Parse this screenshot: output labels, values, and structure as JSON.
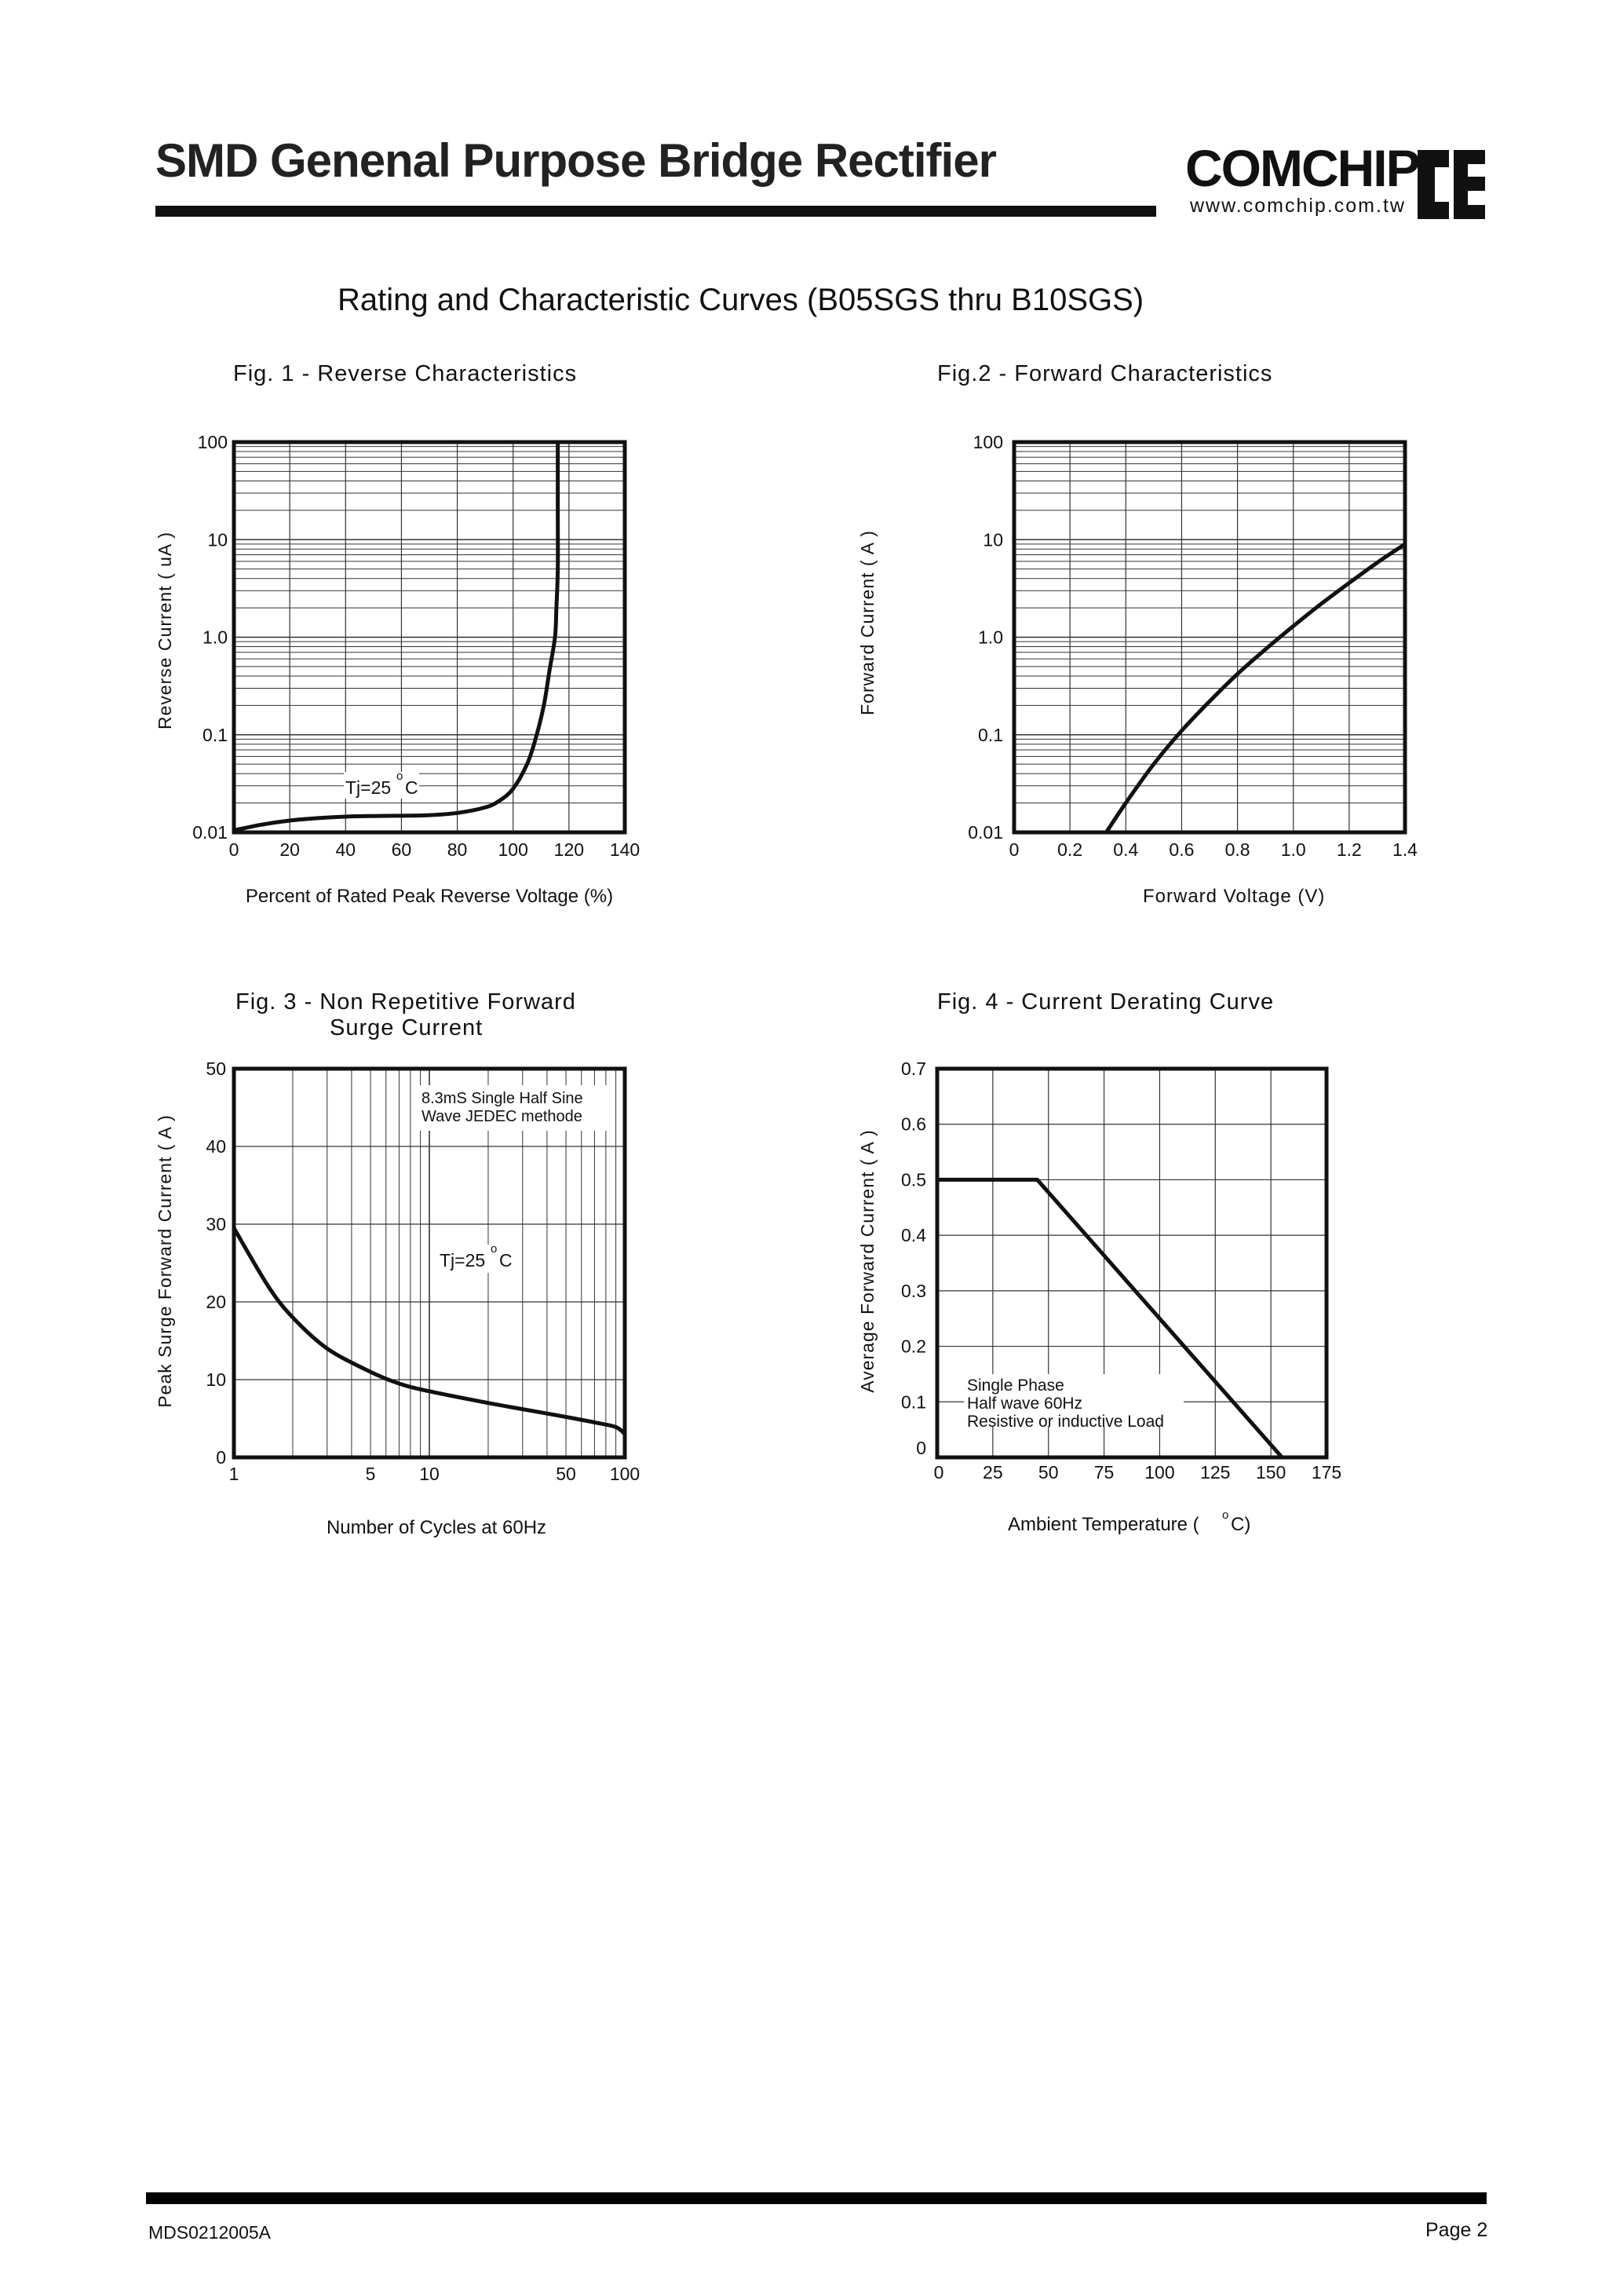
{
  "header": {
    "title": "SMD Genenal Purpose Bridge Rectifier",
    "brand": "COMCHIP",
    "brand_url": "www.comchip.com.tw",
    "logo_mark": "CE",
    "logo_sub": "R"
  },
  "subtitle": "Rating and Characteristic Curves (B05SGS thru B10SGS)",
  "footer": {
    "doc_code": "MDS0212005A",
    "page": "Page 2"
  },
  "chart_data": [
    {
      "id": "fig1",
      "type": "line",
      "title": "Fig. 1 -  Reverse Characteristics",
      "xlabel": "Percent of Rated Peak Reverse Voltage (%)",
      "ylabel": "Reverse Current ( uA )",
      "xscale": "linear",
      "yscale": "log",
      "xlim": [
        0,
        140
      ],
      "ylim": [
        0.01,
        100
      ],
      "xticks": [
        "0",
        "20",
        "40",
        "60",
        "80",
        "100",
        "120",
        "140"
      ],
      "yticks": [
        "0.01",
        "0.1",
        "1.0",
        "10",
        "100"
      ],
      "grid": true,
      "annotations": [
        {
          "text": "Tj=25",
          "sup": "o",
          "unit": "C"
        }
      ],
      "series": [
        {
          "x": [
            0,
            10,
            20,
            30,
            40,
            50,
            60,
            70,
            80,
            90,
            95,
            100,
            105,
            108,
            111,
            113,
            115,
            115.5,
            116,
            116,
            116
          ],
          "y": [
            0.0105,
            0.012,
            0.0132,
            0.014,
            0.0145,
            0.0147,
            0.0148,
            0.015,
            0.0158,
            0.018,
            0.021,
            0.028,
            0.05,
            0.09,
            0.2,
            0.45,
            1.0,
            2.0,
            5.0,
            20,
            100
          ]
        }
      ],
      "color": "#111111"
    },
    {
      "id": "fig2",
      "type": "line",
      "title": "Fig.2 -  Forward Characteristics",
      "xlabel": "Forward Voltage (V)",
      "ylabel": "Forward Current ( A )",
      "xscale": "linear",
      "yscale": "log",
      "xlim": [
        0,
        1.4
      ],
      "ylim": [
        0.01,
        100
      ],
      "xticks": [
        "0",
        "0.2",
        "0.4",
        "0.6",
        "0.8",
        "1.0",
        "1.2",
        "1.4"
      ],
      "yticks": [
        "0.01",
        "0.1",
        "1.0",
        "10",
        "100"
      ],
      "grid": true,
      "series": [
        {
          "x": [
            0.33,
            0.4,
            0.5,
            0.6,
            0.7,
            0.8,
            0.9,
            1.0,
            1.1,
            1.2,
            1.3,
            1.4
          ],
          "y": [
            0.01,
            0.02,
            0.05,
            0.11,
            0.22,
            0.42,
            0.75,
            1.3,
            2.2,
            3.6,
            5.8,
            9.0
          ]
        }
      ],
      "color": "#111111"
    },
    {
      "id": "fig3",
      "type": "line",
      "title_lines": [
        "Fig. 3 -  Non Repetitive Forward",
        "Surge Current"
      ],
      "xlabel": "Number of Cycles at 60Hz",
      "ylabel": "Peak Surge Forward Current ( A )",
      "xscale": "log",
      "yscale": "linear",
      "xlim": [
        1,
        100
      ],
      "ylim": [
        0,
        50
      ],
      "xticks": [
        {
          "v": 1,
          "t": "1"
        },
        {
          "v": 5,
          "t": "5"
        },
        {
          "v": 10,
          "t": "10"
        },
        {
          "v": 50,
          "t": "50"
        },
        {
          "v": 100,
          "t": "100"
        }
      ],
      "yticks": [
        "0",
        "10",
        "20",
        "30",
        "40",
        "50"
      ],
      "grid": true,
      "annotations": [
        {
          "text": "8.3mS Single Half Sine"
        },
        {
          "text": "Wave JEDEC methode"
        },
        {
          "text": "Tj=25",
          "sup": "o",
          "unit": "C"
        }
      ],
      "series": [
        {
          "x": [
            1,
            1.5,
            2,
            3,
            5,
            7,
            10,
            20,
            30,
            50,
            70,
            90,
            100
          ],
          "y": [
            29.5,
            22,
            18,
            14,
            11,
            9.5,
            8.5,
            7,
            6.2,
            5.2,
            4.5,
            3.9,
            3.0
          ]
        }
      ],
      "color": "#111111"
    },
    {
      "id": "fig4",
      "type": "line",
      "title": "Fig. 4 - Current Derating Curve",
      "xlabel": "Ambient Temperature (",
      "xlabel_sup": "o",
      "xlabel_end": "C)",
      "ylabel": "Average Forward Current ( A )",
      "xscale": "linear",
      "yscale": "linear",
      "xlim": [
        0,
        175
      ],
      "ylim": [
        0,
        0.7
      ],
      "xticks": [
        "0",
        "25",
        "50",
        "75",
        "100",
        "125",
        "150",
        "175"
      ],
      "yticks": [
        "0",
        "0.1",
        "0.2",
        "0.3",
        "0.4",
        "0.5",
        "0.6",
        "0.7"
      ],
      "grid": true,
      "annotations": [
        {
          "text": "Single Phase"
        },
        {
          "text": "Half wave 60Hz"
        },
        {
          "text": "Resistive or inductive Load"
        }
      ],
      "series": [
        {
          "x": [
            0,
            45,
            155
          ],
          "y": [
            0.5,
            0.5,
            0
          ]
        }
      ],
      "color": "#111111"
    }
  ]
}
